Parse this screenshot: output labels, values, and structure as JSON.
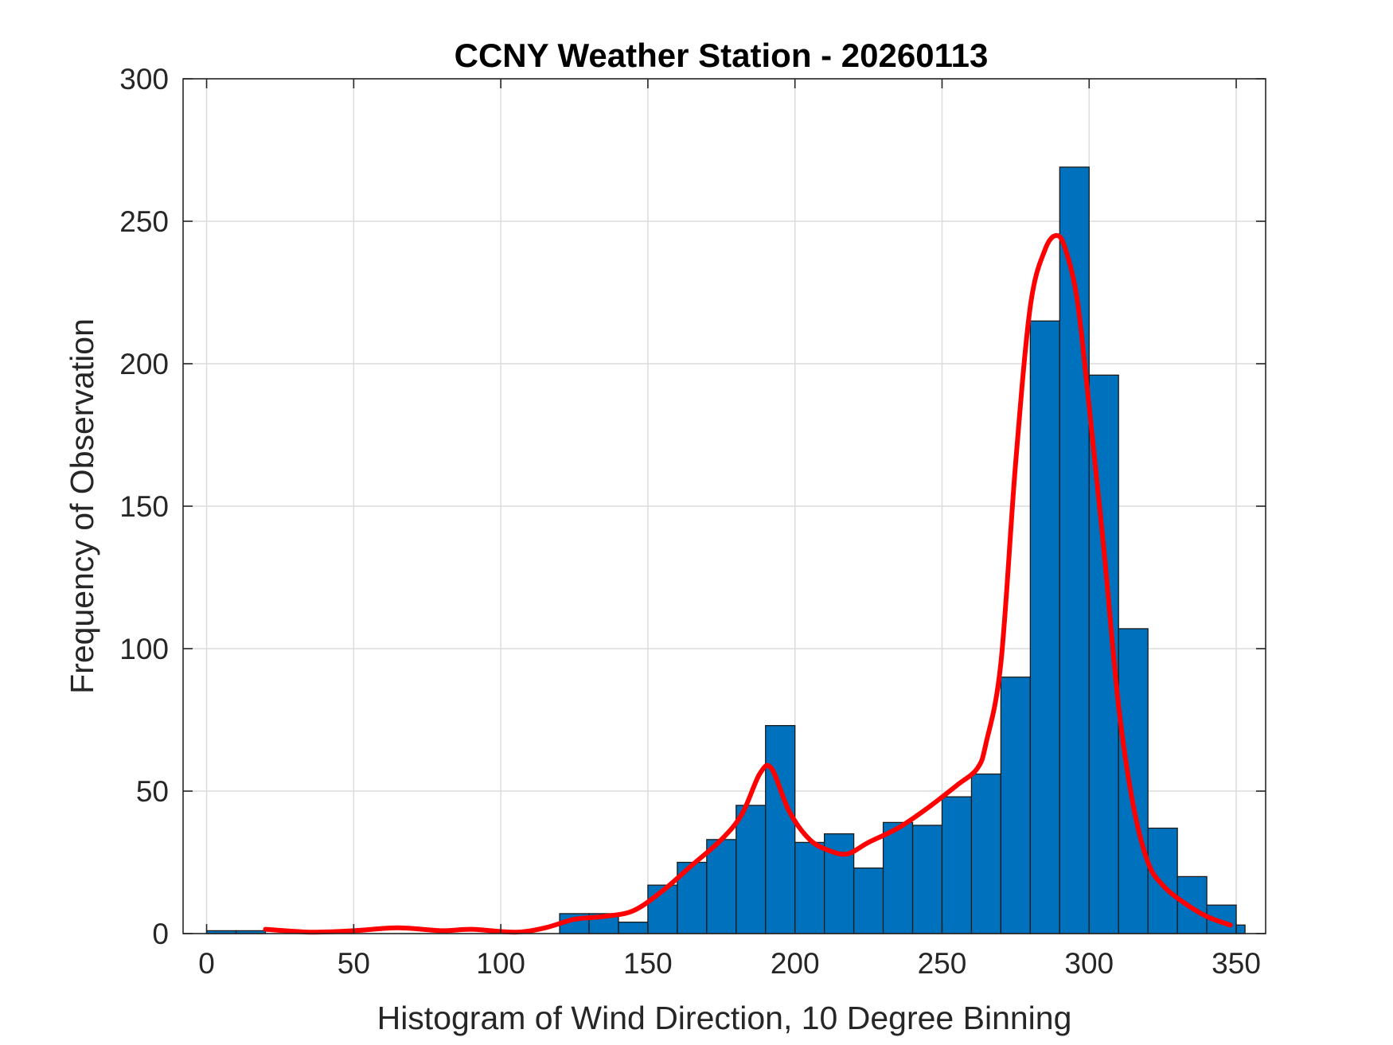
{
  "chart_data": {
    "type": "bar",
    "title": "CCNY Weather Station - 20260113",
    "xlabel": "Histogram of Wind Direction, 10 Degree Binning",
    "ylabel": "Frequency of Observation",
    "xlim": [
      -8,
      360
    ],
    "ylim": [
      0,
      300
    ],
    "xticks": [
      0,
      50,
      100,
      150,
      200,
      250,
      300,
      350
    ],
    "yticks": [
      0,
      50,
      100,
      150,
      200,
      250,
      300
    ],
    "grid": true,
    "bin_edges": [
      0,
      10,
      20,
      30,
      40,
      50,
      60,
      70,
      80,
      90,
      100,
      110,
      120,
      130,
      140,
      150,
      160,
      170,
      180,
      190,
      200,
      210,
      220,
      230,
      240,
      250,
      260,
      270,
      280,
      290,
      300,
      310,
      320,
      330,
      340,
      350,
      353
    ],
    "values": [
      1,
      1,
      0,
      0,
      0,
      0,
      0,
      0,
      0,
      0,
      0,
      0,
      7,
      7,
      4,
      17,
      25,
      33,
      45,
      73,
      32,
      35,
      23,
      39,
      38,
      48,
      56,
      90,
      215,
      269,
      196,
      107,
      37,
      20,
      10,
      3
    ],
    "bar_color": "#0072BD",
    "curve": {
      "color": "#FF0000",
      "x": [
        20,
        35,
        50,
        65,
        80,
        90,
        105,
        115,
        125,
        135,
        145,
        155,
        165,
        175,
        182,
        188,
        192,
        198,
        205,
        212,
        218,
        225,
        235,
        245,
        255,
        262,
        265,
        270,
        275,
        280,
        285,
        289,
        292,
        296,
        300,
        305,
        310,
        315,
        320,
        325,
        332,
        340,
        348
      ],
      "y": [
        1.5,
        0.5,
        1,
        2,
        1,
        1.5,
        0.5,
        2,
        5,
        6,
        8,
        15,
        24,
        33,
        42,
        56,
        58,
        43,
        33,
        29,
        28,
        32,
        37,
        44,
        52,
        58,
        67,
        95,
        165,
        220,
        240,
        245,
        240,
        222,
        185,
        135,
        80,
        45,
        25,
        17,
        11,
        6,
        3
      ]
    }
  }
}
